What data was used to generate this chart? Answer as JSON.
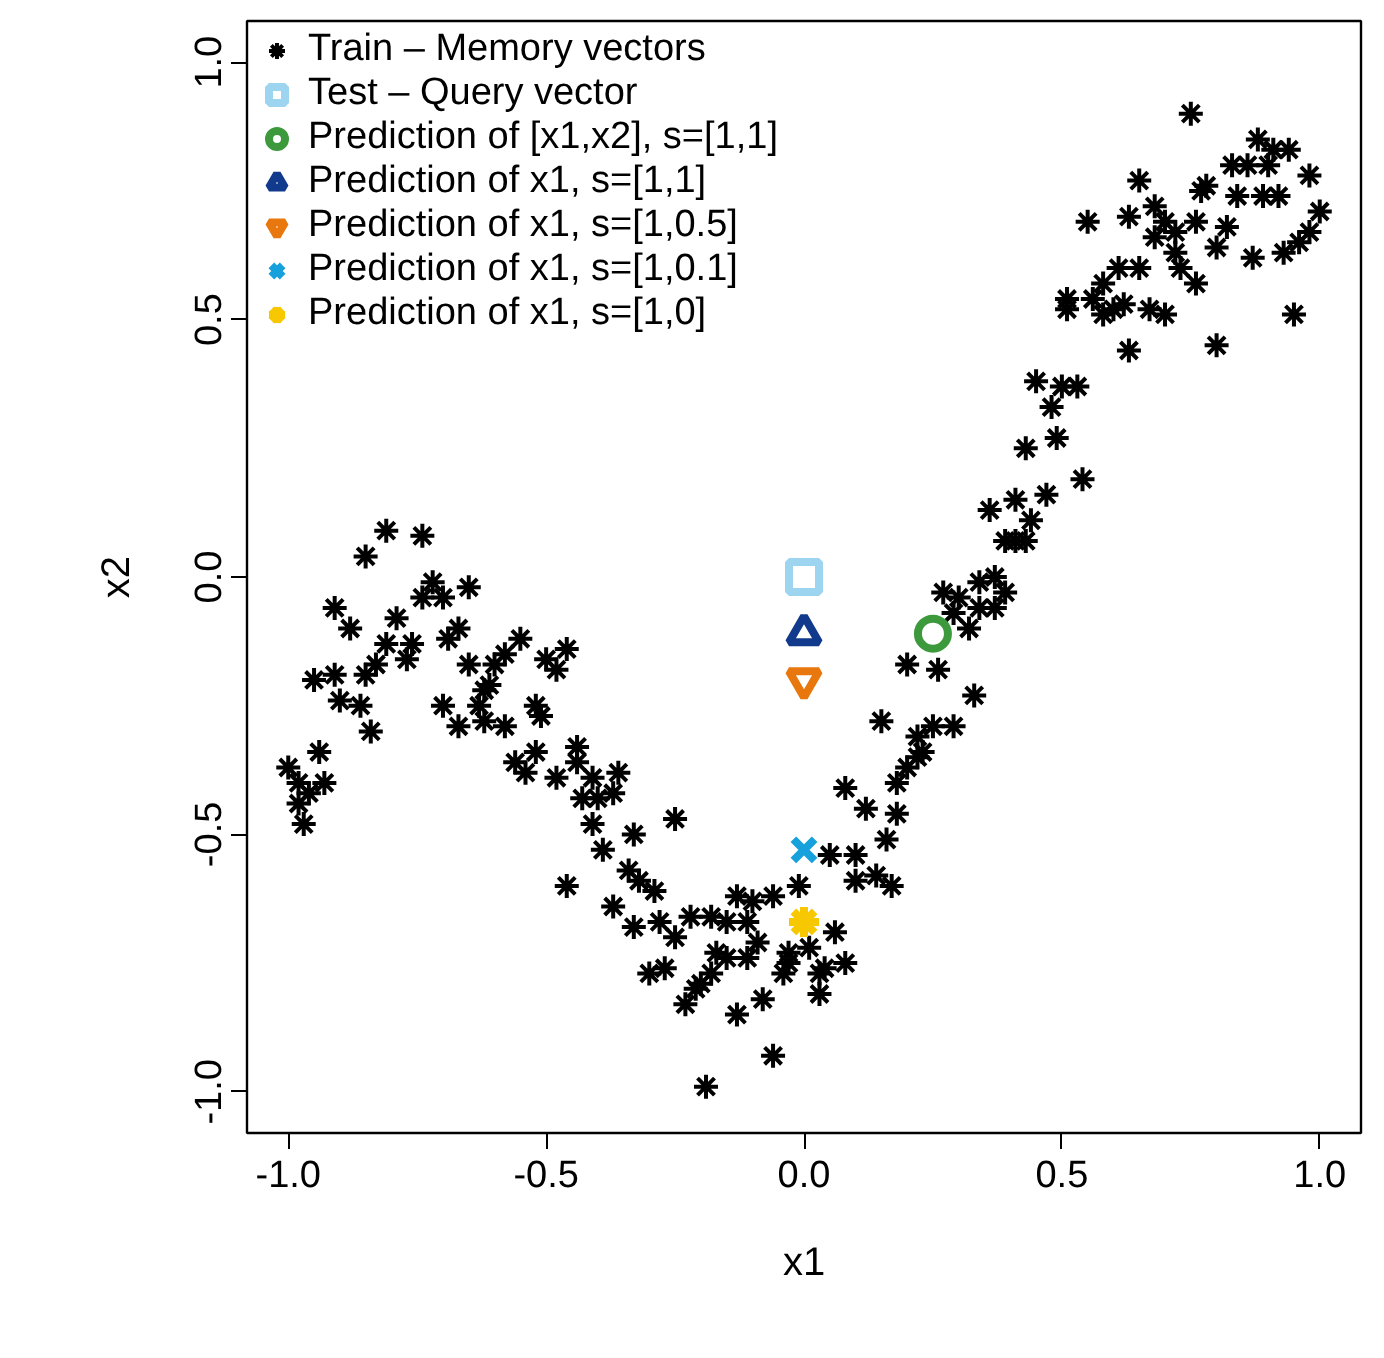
{
  "chart_data": {
    "type": "scatter",
    "xlabel": "x1",
    "ylabel": "x2",
    "xlim": [
      -1.08,
      1.08
    ],
    "ylim": [
      -1.08,
      1.08
    ],
    "xticks": [
      {
        "value": -1,
        "label": "-1.0"
      },
      {
        "value": -0.5,
        "label": "-0.5"
      },
      {
        "value": 0,
        "label": "0.0"
      },
      {
        "value": 0.5,
        "label": "0.5"
      },
      {
        "value": 1,
        "label": "1.0"
      }
    ],
    "yticks": [
      {
        "value": -1,
        "label": "-1.0"
      },
      {
        "value": -0.5,
        "label": "-0.5"
      },
      {
        "value": 0,
        "label": "0.0"
      },
      {
        "value": 0.5,
        "label": "0.5"
      },
      {
        "value": 1,
        "label": "1.0"
      }
    ],
    "grid": false,
    "legend": "top left",
    "series": [
      {
        "name": "Train – Memory vectors",
        "color": "#000000",
        "marker": "cross",
        "x": [
          -0.81,
          -0.74,
          -0.85,
          -0.72,
          -0.65,
          -0.74,
          -0.7,
          -0.91,
          -0.88,
          -0.79,
          -0.67,
          -0.81,
          -0.76,
          -0.69,
          -0.83,
          -0.77,
          -0.55,
          -0.58,
          -0.6,
          -0.65,
          -0.5,
          -0.46,
          -0.48,
          -0.95,
          -0.91,
          -0.85,
          -0.62,
          -0.61,
          -0.9,
          -0.86,
          -0.7,
          -0.63,
          -0.52,
          -0.51,
          -0.62,
          -0.58,
          -0.67,
          -0.84,
          -0.94,
          -0.52,
          -0.44,
          -0.56,
          -0.54,
          -0.44,
          -1.0,
          -0.98,
          -0.93,
          -0.48,
          -0.41,
          -0.36,
          -0.96,
          -0.43,
          -0.4,
          -0.37,
          -0.98,
          -0.97,
          -0.41,
          -0.33,
          -0.25,
          -0.39,
          0.08,
          0.12,
          0.18,
          0.18,
          0.16,
          0.05,
          0.1,
          0.1,
          0.14,
          0.17,
          -0.46,
          -0.34,
          -0.32,
          -0.29,
          -0.37,
          -0.13,
          -0.1,
          -0.06,
          -0.01,
          -0.33,
          -0.28,
          -0.22,
          -0.18,
          -0.15,
          -0.11,
          -0.25,
          0.06,
          0.01,
          -0.09,
          -0.17,
          -0.15,
          -0.11,
          -0.03,
          -0.03,
          -0.3,
          -0.27,
          -0.18,
          -0.2,
          -0.04,
          0.03,
          0.04,
          0.08,
          -0.21,
          -0.23,
          -0.13,
          -0.08,
          0.03,
          -0.06,
          -0.19,
          0.63,
          0.45,
          0.5,
          0.53,
          0.48,
          0.49,
          0.43,
          0.54,
          0.36,
          0.41,
          0.47,
          0.44,
          0.39,
          0.41,
          0.43,
          0.27,
          0.3,
          0.34,
          0.37,
          0.39,
          0.29,
          0.34,
          0.37,
          0.32,
          0.2,
          0.26,
          0.33,
          0.15,
          0.25,
          0.29,
          0.22,
          0.23,
          0.22,
          0.2,
          0.75,
          0.88,
          0.91,
          0.94,
          0.83,
          0.86,
          0.9,
          0.98,
          0.65,
          0.78,
          0.77,
          0.84,
          0.89,
          0.92,
          1.0,
          0.55,
          0.63,
          0.68,
          0.7,
          0.76,
          0.82,
          0.68,
          0.72,
          0.8,
          0.72,
          0.87,
          0.93,
          0.96,
          0.98,
          0.61,
          0.65,
          0.73,
          0.58,
          0.76,
          0.51,
          0.56,
          0.62,
          0.51,
          0.58,
          0.6,
          0.67,
          0.7,
          0.95,
          0.8
        ],
        "values": [
          0.09,
          0.08,
          0.04,
          -0.01,
          -0.02,
          -0.04,
          -0.04,
          -0.06,
          -0.1,
          -0.08,
          -0.1,
          -0.13,
          -0.13,
          -0.12,
          -0.17,
          -0.16,
          -0.12,
          -0.15,
          -0.17,
          -0.17,
          -0.16,
          -0.14,
          -0.18,
          -0.2,
          -0.19,
          -0.19,
          -0.22,
          -0.21,
          -0.24,
          -0.25,
          -0.25,
          -0.25,
          -0.25,
          -0.27,
          -0.28,
          -0.29,
          -0.29,
          -0.3,
          -0.34,
          -0.34,
          -0.33,
          -0.36,
          -0.38,
          -0.36,
          -0.37,
          -0.4,
          -0.4,
          -0.39,
          -0.39,
          -0.38,
          -0.42,
          -0.43,
          -0.43,
          -0.42,
          -0.44,
          -0.48,
          -0.48,
          -0.5,
          -0.47,
          -0.53,
          -0.41,
          -0.45,
          -0.4,
          -0.46,
          -0.51,
          -0.54,
          -0.54,
          -0.59,
          -0.58,
          -0.6,
          -0.6,
          -0.57,
          -0.59,
          -0.61,
          -0.64,
          -0.62,
          -0.63,
          -0.62,
          -0.6,
          -0.68,
          -0.67,
          -0.66,
          -0.66,
          -0.67,
          -0.67,
          -0.7,
          -0.69,
          -0.72,
          -0.71,
          -0.73,
          -0.74,
          -0.74,
          -0.73,
          -0.75,
          -0.77,
          -0.76,
          -0.77,
          -0.79,
          -0.77,
          -0.77,
          -0.76,
          -0.75,
          -0.8,
          -0.83,
          -0.85,
          -0.82,
          -0.81,
          -0.93,
          -0.99,
          0.44,
          0.38,
          0.37,
          0.37,
          0.33,
          0.27,
          0.25,
          0.19,
          0.13,
          0.15,
          0.16,
          0.11,
          0.07,
          0.07,
          0.07,
          -0.03,
          -0.04,
          -0.01,
          0.0,
          -0.03,
          -0.07,
          -0.06,
          -0.06,
          -0.1,
          -0.17,
          -0.18,
          -0.23,
          -0.28,
          -0.29,
          -0.29,
          -0.31,
          -0.34,
          -0.35,
          -0.37,
          0.9,
          0.85,
          0.83,
          0.83,
          0.8,
          0.8,
          0.8,
          0.78,
          0.77,
          0.76,
          0.75,
          0.74,
          0.74,
          0.74,
          0.71,
          0.69,
          0.7,
          0.72,
          0.69,
          0.69,
          0.68,
          0.66,
          0.67,
          0.64,
          0.63,
          0.62,
          0.63,
          0.65,
          0.67,
          0.6,
          0.6,
          0.6,
          0.57,
          0.57,
          0.54,
          0.54,
          0.53,
          0.52,
          0.51,
          0.52,
          0.52,
          0.51,
          0.51,
          0.45
        ]
      },
      {
        "name": "Test – Query vector",
        "color": "#9dd4f0",
        "marker": "square",
        "x": [
          0
        ],
        "values": [
          0
        ]
      },
      {
        "name": "Prediction of [x1,x2], s=[1,1]",
        "color": "#3c9a3c",
        "marker": "circle",
        "x": [
          0.25
        ],
        "values": [
          -0.11
        ]
      },
      {
        "name": "Prediction of x1, s=[1,1]",
        "color": "#123a8c",
        "marker": "triangle",
        "x": [
          0
        ],
        "values": [
          -0.11
        ]
      },
      {
        "name": "Prediction of x1, s=[1,0.5]",
        "color": "#e8780e",
        "marker": "triangle_down",
        "x": [
          0
        ],
        "values": [
          -0.2
        ]
      },
      {
        "name": "Prediction of x1, s=[1,0.1]",
        "color": "#16a0dc",
        "marker": "x",
        "x": [
          0
        ],
        "values": [
          -0.53
        ]
      },
      {
        "name": "Prediction of x1, s=[1,0]",
        "color": "#f7c700",
        "marker": "cross",
        "x": [
          0
        ],
        "values": [
          -0.67
        ]
      }
    ]
  }
}
